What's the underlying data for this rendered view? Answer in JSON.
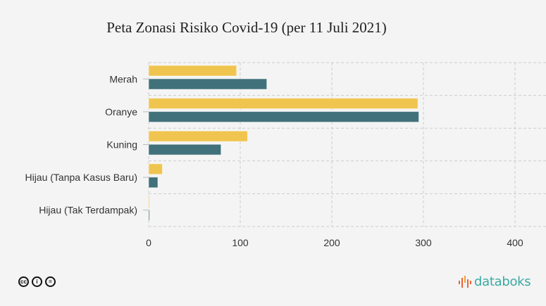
{
  "chart_data": {
    "type": "bar",
    "orientation": "horizontal",
    "title": "Peta Zonasi Risiko Covid-19 (per 11 Juli 2021)",
    "categories": [
      "Merah",
      "Oranye",
      "Kuning",
      "Hijau (Tanpa Kasus Baru)",
      "Hijau (Tak Terdampak)"
    ],
    "series": [
      {
        "color": "#f0c54f",
        "values": [
          96,
          294,
          108,
          15,
          1
        ]
      },
      {
        "color": "#41717a",
        "values": [
          129,
          295,
          79,
          10,
          1
        ]
      }
    ],
    "xlim": [
      0,
      400
    ],
    "xticks": [
      "0",
      "100",
      "200",
      "300",
      "400"
    ],
    "xtick_values": [
      0,
      100,
      200,
      300,
      400
    ],
    "grid": true,
    "xlabel": "",
    "ylabel": ""
  },
  "footer": {
    "license_icons": [
      "cc",
      "by",
      "nd"
    ],
    "license_glyphs": [
      "cc",
      "i",
      "="
    ],
    "brand": "databoks"
  }
}
